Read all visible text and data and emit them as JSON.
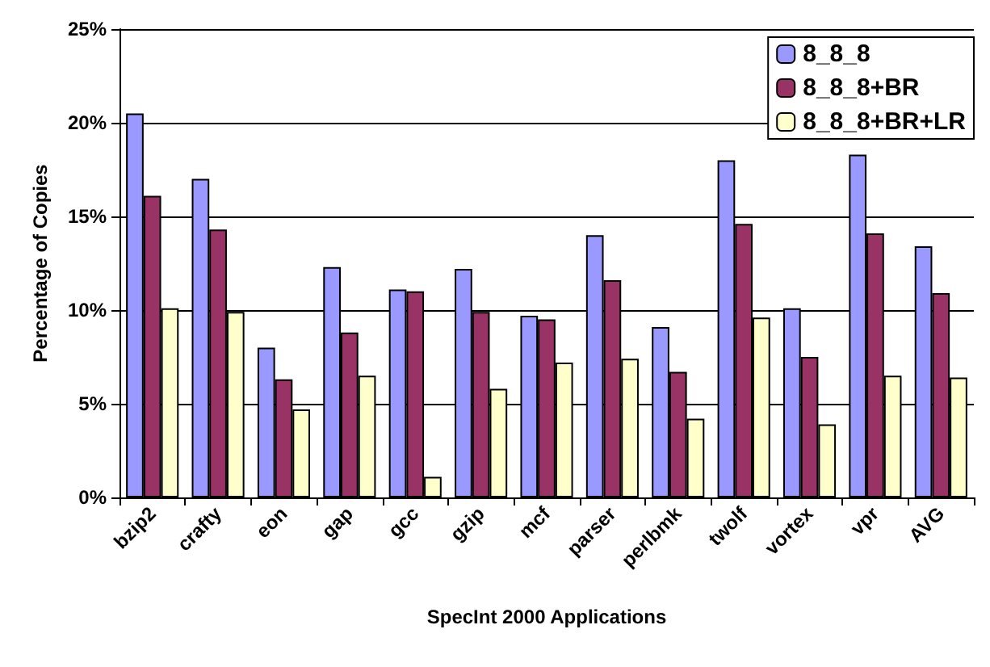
{
  "chart_data": {
    "type": "bar",
    "xlabel": "SpecInt 2000 Applications",
    "ylabel": "Percentage of Copies",
    "categories": [
      "bzip2",
      "crafty",
      "eon",
      "gap",
      "gcc",
      "gzip",
      "mcf",
      "parser",
      "perlbmk",
      "twolf",
      "vortex",
      "vpr",
      "AVG"
    ],
    "series": [
      {
        "name": "8_8_8",
        "color": "#9999ff",
        "values": [
          20.5,
          17.0,
          8.0,
          12.3,
          11.1,
          12.2,
          9.7,
          14.0,
          9.1,
          18.0,
          10.1,
          18.3,
          13.4
        ]
      },
      {
        "name": "8_8_8+BR",
        "color": "#993366",
        "values": [
          16.1,
          14.3,
          6.3,
          8.8,
          11.0,
          9.9,
          9.5,
          11.6,
          6.7,
          14.6,
          7.5,
          14.1,
          10.9
        ]
      },
      {
        "name": "8_8_8+BR+LR",
        "color": "#ffffcc",
        "values": [
          10.1,
          9.9,
          4.7,
          6.5,
          1.1,
          5.8,
          7.2,
          7.4,
          4.2,
          9.6,
          3.9,
          6.5,
          6.4
        ]
      }
    ],
    "ylim": [
      0,
      25
    ],
    "yticks": [
      {
        "value": 0,
        "label": "0%"
      },
      {
        "value": 5,
        "label": "5%"
      },
      {
        "value": 10,
        "label": "10%"
      },
      {
        "value": 15,
        "label": "15%"
      },
      {
        "value": 20,
        "label": "20%"
      },
      {
        "value": 25,
        "label": "25%"
      }
    ],
    "grid": "y",
    "legend": "top right"
  }
}
